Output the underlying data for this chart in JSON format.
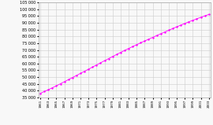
{
  "years": [
    1961,
    1962,
    1963,
    1964,
    1965,
    1966,
    1967,
    1968,
    1969,
    1970,
    1971,
    1972,
    1973,
    1974,
    1975,
    1976,
    1977,
    1978,
    1979,
    1980,
    1981,
    1982,
    1983,
    1984,
    1985,
    1986,
    1987,
    1988,
    1989,
    1990,
    1991,
    1992,
    1993,
    1994,
    1995,
    1996,
    1997,
    1998,
    1999,
    2000,
    2001,
    2002,
    2003
  ],
  "population": [
    38122,
    39415,
    40769,
    42177,
    43634,
    45130,
    46651,
    48183,
    49710,
    51244,
    52770,
    54307,
    55859,
    57418,
    58983,
    60548,
    62106,
    63651,
    65182,
    66700,
    68201,
    69677,
    71121,
    72534,
    73919,
    75285,
    76640,
    77985,
    79325,
    80657,
    81971,
    83272,
    84561,
    85836,
    87095,
    88341,
    89570,
    90784,
    91870,
    93008,
    94107,
    95178,
    96235
  ],
  "line_color": "#ff00ff",
  "marker_color": "#ff00ff",
  "bg_color": "#f8f8f8",
  "grid_color": "#cccccc",
  "ylim": [
    35000,
    105000
  ],
  "ytick_step": 5000,
  "figsize": [
    2.7,
    1.59
  ],
  "dpi": 100
}
